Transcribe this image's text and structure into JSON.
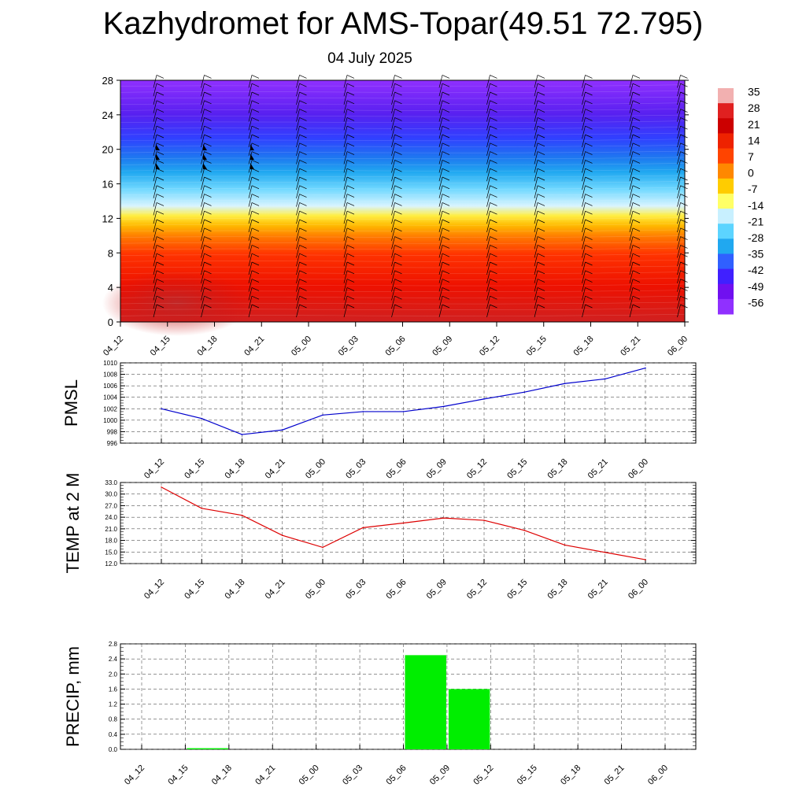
{
  "title": "Kazhydromet for AMS-Topar(49.51 72.795)",
  "subtitle": "04 July 2025",
  "time_labels": [
    "04_12",
    "04_15",
    "04_18",
    "04_21",
    "05_00",
    "05_03",
    "05_06",
    "05_09",
    "05_12",
    "05_15",
    "05_18",
    "05_21",
    "06_00"
  ],
  "colors": {
    "pmsl_line": "#0000cc",
    "temp_line": "#dd0000",
    "precip_bar": "#00ee00"
  },
  "chart_data": [
    {
      "type": "heatmap",
      "name": "cross_section",
      "y_ticks": [
        0,
        4,
        8,
        12,
        16,
        20,
        24,
        28
      ],
      "ylim": [
        0,
        28
      ],
      "colorbar_labels": [
        "35",
        "28",
        "21",
        "14",
        "7",
        "0",
        "-7",
        "-14",
        "-21",
        "-28",
        "-35",
        "-42",
        "-49",
        "-56"
      ],
      "colorbar_colors": [
        "#f2b0b0",
        "#e02020",
        "#cc0000",
        "#ee2200",
        "#ff4400",
        "#ff8800",
        "#ffcc00",
        "#ffff66",
        "#c8f0ff",
        "#5cd4ff",
        "#20a8f0",
        "#3060ff",
        "#4020ff",
        "#7010f0",
        "#9030ff"
      ],
      "overlay": "wind barbs"
    },
    {
      "type": "line",
      "name": "pmsl",
      "ylabel": "PMSL",
      "ylim": [
        996,
        1010
      ],
      "y_ticks": [
        "996",
        "998",
        "1000",
        "1002",
        "1004",
        "1006",
        "1008",
        "1010"
      ],
      "values": [
        1002.0,
        1000.3,
        997.5,
        998.3,
        1000.9,
        1001.5,
        1001.5,
        1002.4,
        1003.7,
        1004.9,
        1006.4,
        1007.2,
        1009.1
      ]
    },
    {
      "type": "line",
      "name": "temp_2m",
      "ylabel": "TEMP at 2 M",
      "ylim": [
        12,
        33
      ],
      "y_ticks": [
        "12.0",
        "15.0",
        "18.0",
        "21.0",
        "24.0",
        "27.0",
        "30.0",
        "33.0"
      ],
      "values": [
        31.8,
        26.3,
        24.5,
        19.3,
        16.2,
        21.3,
        22.5,
        23.8,
        23.2,
        20.6,
        16.8,
        14.9,
        13.0
      ]
    },
    {
      "type": "bar",
      "name": "precip",
      "ylabel": "PRECIP, mm",
      "ylim": [
        0,
        2.8
      ],
      "y_ticks": [
        "0.0",
        "0.4",
        "0.8",
        "1.2",
        "1.6",
        "2.0",
        "2.4",
        "2.8"
      ],
      "values": [
        0.0,
        0.03,
        0.0,
        0.0,
        0.0,
        0.0,
        2.5,
        1.6,
        0.0,
        0.0,
        0.0,
        0.0
      ]
    }
  ]
}
